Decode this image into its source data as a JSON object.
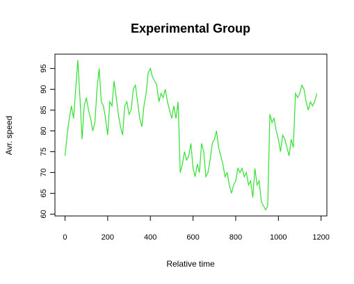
{
  "chart_data": {
    "type": "line",
    "title": "Experimental Group",
    "xlabel": "Relative time",
    "ylabel": "Avr. speed",
    "x": [
      0,
      10,
      20,
      30,
      40,
      50,
      60,
      70,
      80,
      90,
      100,
      110,
      120,
      130,
      140,
      150,
      160,
      170,
      180,
      190,
      200,
      210,
      220,
      230,
      240,
      250,
      260,
      270,
      280,
      290,
      300,
      310,
      320,
      330,
      340,
      350,
      360,
      370,
      380,
      390,
      400,
      410,
      420,
      430,
      440,
      450,
      460,
      470,
      480,
      490,
      500,
      510,
      520,
      530,
      540,
      550,
      560,
      570,
      580,
      590,
      600,
      610,
      620,
      630,
      640,
      650,
      660,
      670,
      680,
      690,
      700,
      710,
      720,
      730,
      740,
      750,
      760,
      770,
      780,
      790,
      800,
      810,
      820,
      830,
      840,
      850,
      860,
      870,
      880,
      890,
      900,
      910,
      920,
      930,
      940,
      950,
      960,
      970,
      980,
      990,
      1000,
      1010,
      1020,
      1030,
      1040,
      1050,
      1060,
      1070,
      1080,
      1090,
      1100,
      1110,
      1120,
      1130,
      1140,
      1150,
      1160,
      1170,
      1180
    ],
    "series": [
      {
        "color": "#2fe02f",
        "values": [
          74,
          79,
          83,
          86,
          83,
          90,
          97,
          88,
          78,
          86,
          88,
          85,
          83,
          80,
          82,
          90,
          95,
          87,
          86,
          83,
          79,
          87,
          86,
          92,
          88,
          84,
          81,
          79,
          86,
          87,
          84,
          85,
          90,
          91,
          87,
          83,
          81,
          86,
          89,
          94,
          95,
          93,
          92,
          91,
          87,
          89,
          88,
          90,
          87,
          85,
          83,
          86,
          83,
          87,
          70,
          72,
          75,
          73,
          74,
          77,
          71,
          69,
          72,
          70,
          77,
          75,
          69,
          70,
          73,
          77,
          78,
          80,
          76,
          74,
          72,
          69,
          70,
          67,
          65,
          67,
          68,
          71,
          70,
          71,
          69,
          70,
          67,
          68,
          64,
          71,
          67,
          68,
          63,
          62,
          61,
          62,
          84,
          82,
          83,
          80,
          78,
          75,
          79,
          78,
          76,
          74,
          78,
          76,
          89,
          88,
          89,
          91,
          90,
          87,
          85,
          87,
          86,
          87,
          89
        ]
      }
    ],
    "xlim": [
      -47.2,
      1227.2
    ],
    "ylim": [
      59.56,
      98.44
    ],
    "xticks": [
      0,
      200,
      400,
      600,
      800,
      1000,
      1200
    ],
    "yticks": [
      60,
      65,
      70,
      75,
      80,
      85,
      90,
      95
    ]
  }
}
